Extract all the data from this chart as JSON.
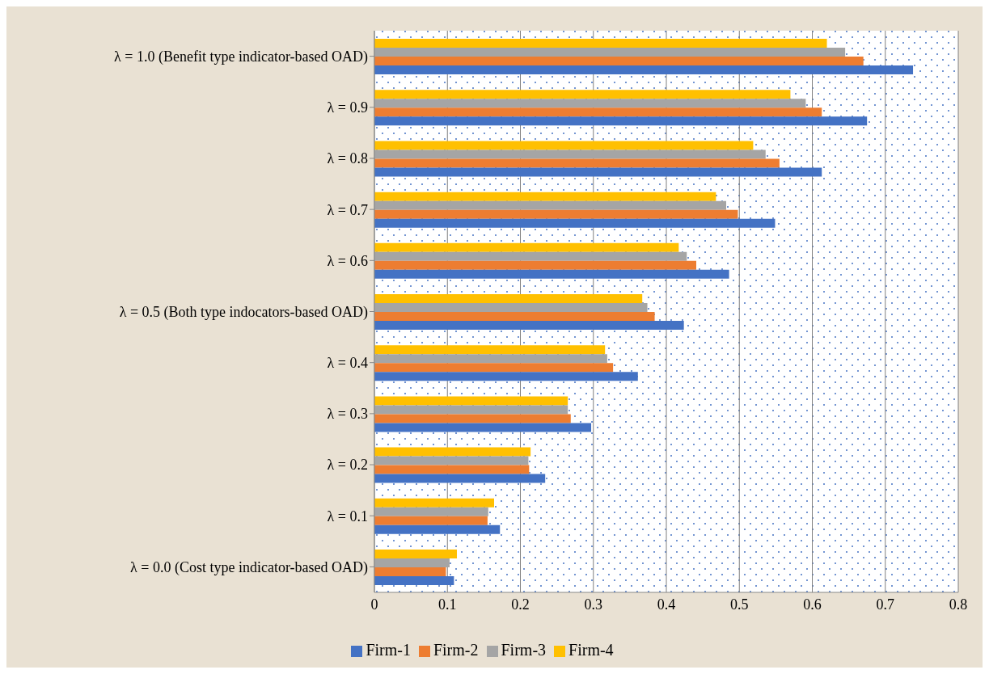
{
  "chart_data": {
    "type": "bar",
    "orientation": "horizontal",
    "categories": [
      "λ = 1.0 (Benefit type indicator-based OAD)",
      "λ = 0.9",
      "λ = 0.8",
      "λ = 0.7",
      "λ = 0.6",
      "λ = 0.5 (Both type indocators-based OAD)",
      "λ = 0.4",
      "λ = 0.3",
      "λ = 0.2",
      "λ = 0.1",
      "λ = 0.0 (Cost type indicator-based OAD)"
    ],
    "series": [
      {
        "name": "Firm-4",
        "color": "#ffc000",
        "values": [
          0.62,
          0.57,
          0.519,
          0.468,
          0.417,
          0.367,
          0.316,
          0.265,
          0.214,
          0.164,
          0.113
        ]
      },
      {
        "name": "Firm-3",
        "color": "#a5a5a5",
        "values": [
          0.645,
          0.591,
          0.536,
          0.482,
          0.428,
          0.374,
          0.319,
          0.265,
          0.211,
          0.156,
          0.103
        ]
      },
      {
        "name": "Firm-2",
        "color": "#ed7d31",
        "values": [
          0.67,
          0.613,
          0.555,
          0.498,
          0.441,
          0.384,
          0.327,
          0.269,
          0.212,
          0.155,
          0.098
        ]
      },
      {
        "name": "Firm-1",
        "color": "#4472c4",
        "values": [
          0.738,
          0.675,
          0.613,
          0.549,
          0.486,
          0.424,
          0.361,
          0.297,
          0.234,
          0.172,
          0.109
        ]
      }
    ],
    "xlim": [
      0,
      0.8
    ],
    "xticks": [
      0,
      0.1,
      0.2,
      0.3,
      0.4,
      0.5,
      0.6,
      0.7,
      0.8
    ],
    "grid": "x",
    "legend": "bottom"
  }
}
